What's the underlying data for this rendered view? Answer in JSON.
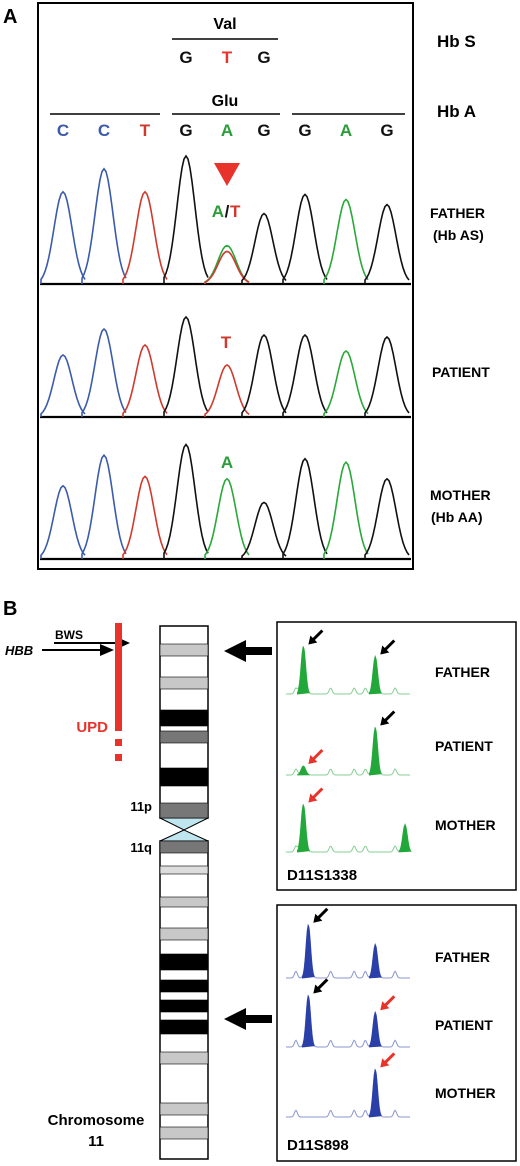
{
  "panel_a": {
    "label": "A",
    "hbs_label": "Hb S",
    "hba_label": "Hb A",
    "val_label": "Val",
    "glu_label": "Glu",
    "hbs_codon": [
      {
        "base": "G",
        "color": "#111111"
      },
      {
        "base": "T",
        "color": "#e8332a"
      },
      {
        "base": "G",
        "color": "#111111"
      }
    ],
    "hba_bases": [
      {
        "base": "C",
        "color": "#3b5bab"
      },
      {
        "base": "C",
        "color": "#3b5bab"
      },
      {
        "base": "T",
        "color": "#d03a2e"
      },
      {
        "base": "G",
        "color": "#111111"
      },
      {
        "base": "A",
        "color": "#2a9d3a"
      },
      {
        "base": "G",
        "color": "#111111"
      },
      {
        "base": "G",
        "color": "#111111"
      },
      {
        "base": "A",
        "color": "#2a9d3a"
      },
      {
        "base": "G",
        "color": "#111111"
      }
    ],
    "traces": [
      {
        "label1": "FATHER",
        "label2": "(Hb AS)",
        "call_a": "A",
        "call_sep": "/",
        "call_t": "T",
        "genotype": "het",
        "heights": [
          0.72,
          0.9,
          0.72,
          1.0,
          0.3,
          0.55,
          0.7,
          0.66,
          0.62
        ]
      },
      {
        "label1": "PATIENT",
        "label2": "",
        "call_a": "",
        "call_sep": "",
        "call_t": "T",
        "genotype": "T",
        "heights": [
          0.62,
          0.88,
          0.72,
          1.0,
          0.52,
          0.82,
          0.82,
          0.66,
          0.8
        ]
      },
      {
        "label1": "MOTHER",
        "label2": "(Hb AA)",
        "call_a": "A",
        "call_sep": "",
        "call_t": "",
        "genotype": "A",
        "heights": [
          0.62,
          0.88,
          0.7,
          0.97,
          0.68,
          0.48,
          0.85,
          0.82,
          0.68
        ]
      }
    ]
  },
  "panel_b": {
    "label": "B",
    "hbb_label": "HBB",
    "bws_label": "BWS",
    "upd_label": "UPD",
    "p_arm_label": "11p",
    "q_arm_label": "11q",
    "chromosome_label1": "Chromosome",
    "chromosome_label2": "11",
    "marker1": {
      "name": "D11S1338",
      "color": "#22a83a",
      "rows": [
        {
          "label": "FATHER",
          "peaks": [
            {
              "pos": 0.14,
              "h": 0.95,
              "arrow": "black"
            },
            {
              "pos": 0.72,
              "h": 0.75,
              "arrow": "black"
            }
          ]
        },
        {
          "label": "PATIENT",
          "peaks": [
            {
              "pos": 0.14,
              "h": 0.18,
              "arrow": "red"
            },
            {
              "pos": 0.72,
              "h": 0.95,
              "arrow": "black"
            }
          ]
        },
        {
          "label": "MOTHER",
          "peaks": [
            {
              "pos": 0.14,
              "h": 0.95,
              "arrow": "red"
            },
            {
              "pos": 0.96,
              "h": 0.55,
              "arrow": ""
            }
          ]
        }
      ]
    },
    "marker2": {
      "name": "D11S898",
      "color": "#2a3fa8",
      "rows": [
        {
          "label": "FATHER",
          "peaks": [
            {
              "pos": 0.18,
              "h": 0.95,
              "arrow": "black"
            },
            {
              "pos": 0.72,
              "h": 0.6,
              "arrow": ""
            }
          ]
        },
        {
          "label": "PATIENT",
          "peaks": [
            {
              "pos": 0.18,
              "h": 0.92,
              "arrow": "black"
            },
            {
              "pos": 0.72,
              "h": 0.62,
              "arrow": "red"
            }
          ]
        },
        {
          "label": "MOTHER",
          "peaks": [
            {
              "pos": 0.72,
              "h": 0.85,
              "arrow": "red"
            }
          ]
        }
      ]
    }
  }
}
